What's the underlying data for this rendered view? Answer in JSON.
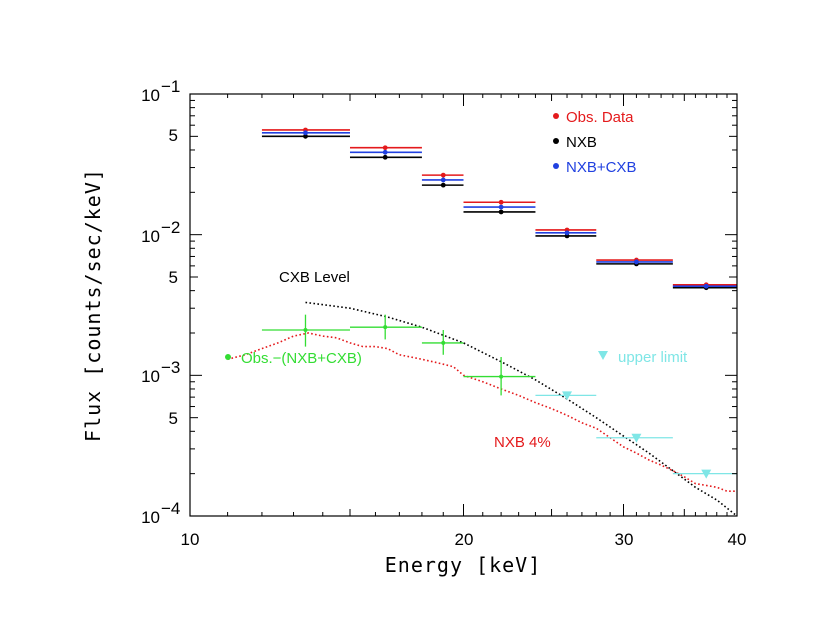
{
  "chart_data": {
    "type": "scatter",
    "title": "",
    "xlabel": "Energy [keV]",
    "ylabel": "Flux [counts/sec/keV]",
    "xscale": "log",
    "yscale": "log",
    "xlim": [
      10,
      40
    ],
    "ylim": [
      0.0001,
      0.1
    ],
    "x_ticks": [
      {
        "value": 10,
        "label": "10"
      },
      {
        "value": 20,
        "label": "20"
      },
      {
        "value": 30,
        "label": "30"
      },
      {
        "value": 40,
        "label": "40"
      }
    ],
    "y_ticks": [
      {
        "value": 0.1,
        "base": "10",
        "exp": "−1"
      },
      {
        "value": 0.05,
        "base": "5",
        "exp": ""
      },
      {
        "value": 0.01,
        "base": "10",
        "exp": "−2"
      },
      {
        "value": 0.005,
        "base": "5",
        "exp": ""
      },
      {
        "value": 0.001,
        "base": "10",
        "exp": "−3"
      },
      {
        "value": 0.0005,
        "base": "5",
        "exp": ""
      },
      {
        "value": 0.0001,
        "base": "10",
        "exp": "−4"
      }
    ],
    "legend": {
      "position": "top-right",
      "items": [
        {
          "label": "Obs. Data",
          "color": "#e41a1c"
        },
        {
          "label": "NXB",
          "color": "#000000"
        },
        {
          "label": "NXB+CXB",
          "color": "#2040e0"
        }
      ]
    },
    "series": [
      {
        "name": "Obs. Data",
        "color": "#e41a1c",
        "marker": "circle",
        "points": [
          {
            "x": 13.4,
            "y": 0.0555,
            "xlo": 12,
            "xhi": 15
          },
          {
            "x": 16.4,
            "y": 0.0415,
            "xlo": 15,
            "xhi": 18
          },
          {
            "x": 19.0,
            "y": 0.0265,
            "xlo": 18,
            "xhi": 20
          },
          {
            "x": 22.0,
            "y": 0.017,
            "xlo": 20,
            "xhi": 24
          },
          {
            "x": 26.0,
            "y": 0.0108,
            "xlo": 24,
            "xhi": 28
          },
          {
            "x": 31.0,
            "y": 0.0066,
            "xlo": 28,
            "xhi": 34
          },
          {
            "x": 37.0,
            "y": 0.0044,
            "xlo": 34,
            "xhi": 40
          }
        ]
      },
      {
        "name": "NXB",
        "color": "#000000",
        "marker": "circle",
        "points": [
          {
            "x": 13.4,
            "y": 0.05,
            "xlo": 12,
            "xhi": 15
          },
          {
            "x": 16.4,
            "y": 0.0355,
            "xlo": 15,
            "xhi": 18
          },
          {
            "x": 19.0,
            "y": 0.0225,
            "xlo": 18,
            "xhi": 20
          },
          {
            "x": 22.0,
            "y": 0.0145,
            "xlo": 20,
            "xhi": 24
          },
          {
            "x": 26.0,
            "y": 0.0098,
            "xlo": 24,
            "xhi": 28
          },
          {
            "x": 31.0,
            "y": 0.0062,
            "xlo": 28,
            "xhi": 34
          },
          {
            "x": 37.0,
            "y": 0.0042,
            "xlo": 34,
            "xhi": 40
          }
        ]
      },
      {
        "name": "NXB+CXB",
        "color": "#2040e0",
        "marker": "circle",
        "points": [
          {
            "x": 13.4,
            "y": 0.053,
            "xlo": 12,
            "xhi": 15
          },
          {
            "x": 16.4,
            "y": 0.0385,
            "xlo": 15,
            "xhi": 18
          },
          {
            "x": 19.0,
            "y": 0.0245,
            "xlo": 18,
            "xhi": 20
          },
          {
            "x": 22.0,
            "y": 0.0157,
            "xlo": 20,
            "xhi": 24
          },
          {
            "x": 26.0,
            "y": 0.0103,
            "xlo": 24,
            "xhi": 28
          },
          {
            "x": 31.0,
            "y": 0.0064,
            "xlo": 28,
            "xhi": 34
          },
          {
            "x": 37.0,
            "y": 0.0043,
            "xlo": 34,
            "xhi": 40
          }
        ]
      },
      {
        "name": "Obs.−(NXB+CXB)",
        "color": "#33dd33",
        "marker": "cross",
        "points": [
          {
            "x": 13.4,
            "y": 0.0021,
            "xlo": 12,
            "xhi": 15,
            "ylo": 0.0016,
            "yhi": 0.0027
          },
          {
            "x": 16.4,
            "y": 0.0022,
            "xlo": 15,
            "xhi": 18,
            "ylo": 0.0018,
            "yhi": 0.0027
          },
          {
            "x": 19.0,
            "y": 0.0017,
            "xlo": 18,
            "xhi": 20,
            "ylo": 0.0014,
            "yhi": 0.0021
          },
          {
            "x": 22.0,
            "y": 0.00098,
            "xlo": 20,
            "xhi": 24,
            "ylo": 0.00072,
            "yhi": 0.00135
          }
        ]
      },
      {
        "name": "upper limit",
        "color": "#7fe6e6",
        "marker": "triangle-down",
        "points": [
          {
            "x": 26.0,
            "y": 0.00072,
            "xlo": 24,
            "xhi": 28
          },
          {
            "x": 31.0,
            "y": 0.00036,
            "xlo": 28,
            "xhi": 34
          },
          {
            "x": 37.0,
            "y": 0.0002,
            "xlo": 34,
            "xhi": 40
          }
        ]
      }
    ],
    "curves": [
      {
        "name": "CXB Level",
        "color": "#000000",
        "style": "dotted",
        "points": [
          [
            13.4,
            0.0033
          ],
          [
            15,
            0.003
          ],
          [
            16.5,
            0.0026
          ],
          [
            18,
            0.0022
          ],
          [
            20,
            0.0017
          ],
          [
            22,
            0.00125
          ],
          [
            24,
            0.00093
          ],
          [
            26,
            0.00068
          ],
          [
            28,
            0.0005
          ],
          [
            30,
            0.00037
          ],
          [
            32,
            0.00028
          ],
          [
            34,
            0.00021
          ],
          [
            36,
            0.00016
          ],
          [
            38,
            0.00013
          ],
          [
            40,
            0.0001
          ]
        ]
      },
      {
        "name": "NXB 4%",
        "color": "#e41a1c",
        "style": "dotted",
        "points": [
          [
            11,
            0.0013
          ],
          [
            11.5,
            0.0014
          ],
          [
            12,
            0.00155
          ],
          [
            12.5,
            0.0017
          ],
          [
            13,
            0.0019
          ],
          [
            13.5,
            0.002
          ],
          [
            14,
            0.0019
          ],
          [
            14.5,
            0.00185
          ],
          [
            15,
            0.0017
          ],
          [
            15.5,
            0.0016
          ],
          [
            16,
            0.0016
          ],
          [
            16.5,
            0.00155
          ],
          [
            17,
            0.0014
          ],
          [
            17.5,
            0.00135
          ],
          [
            18,
            0.0013
          ],
          [
            18.5,
            0.00125
          ],
          [
            19,
            0.0012
          ],
          [
            19.5,
            0.00115
          ],
          [
            20,
            0.001
          ],
          [
            20.5,
            0.00095
          ],
          [
            21,
            0.0009
          ],
          [
            21.5,
            0.00085
          ],
          [
            22,
            0.0008
          ],
          [
            23,
            0.00072
          ],
          [
            24,
            0.00064
          ],
          [
            25,
            0.00058
          ],
          [
            26,
            0.00052
          ],
          [
            27,
            0.00046
          ],
          [
            28,
            0.00042
          ],
          [
            29,
            0.00036
          ],
          [
            30,
            0.00031
          ],
          [
            31,
            0.00028
          ],
          [
            32,
            0.00025
          ],
          [
            33,
            0.00023
          ],
          [
            34,
            0.00021
          ],
          [
            35,
            0.00019
          ],
          [
            36,
            0.00017
          ],
          [
            37,
            0.000165
          ],
          [
            38,
            0.00016
          ],
          [
            39,
            0.00015
          ],
          [
            40,
            0.00015
          ]
        ]
      }
    ],
    "annotations": [
      {
        "text": "CXB Level",
        "color": "#000000"
      },
      {
        "text": "NXB 4%",
        "color": "#e41a1c"
      },
      {
        "text": "Obs.−(NXB+CXB)",
        "color": "#33dd33"
      },
      {
        "text": "upper limit",
        "color": "#7fe6e6"
      }
    ]
  }
}
